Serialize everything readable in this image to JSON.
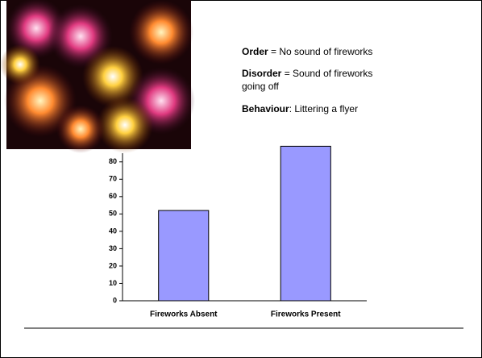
{
  "chart_data": {
    "type": "bar",
    "notes": [
      {
        "term": "Order",
        "text": " = No sound of fireworks"
      },
      {
        "term": "Disorder",
        "text": " = Sound of fireworks",
        "text2": "going off"
      },
      {
        "term": "Behaviour",
        "text": ": Littering a flyer"
      }
    ],
    "categories": [
      "Fireworks Absent",
      "Fireworks Present"
    ],
    "values": [
      52,
      89
    ],
    "color": "#9999ff",
    "ylim": [
      0,
      85
    ],
    "yticks": [
      0,
      10,
      20,
      30,
      40,
      50,
      60,
      70,
      80
    ],
    "grid": false
  }
}
